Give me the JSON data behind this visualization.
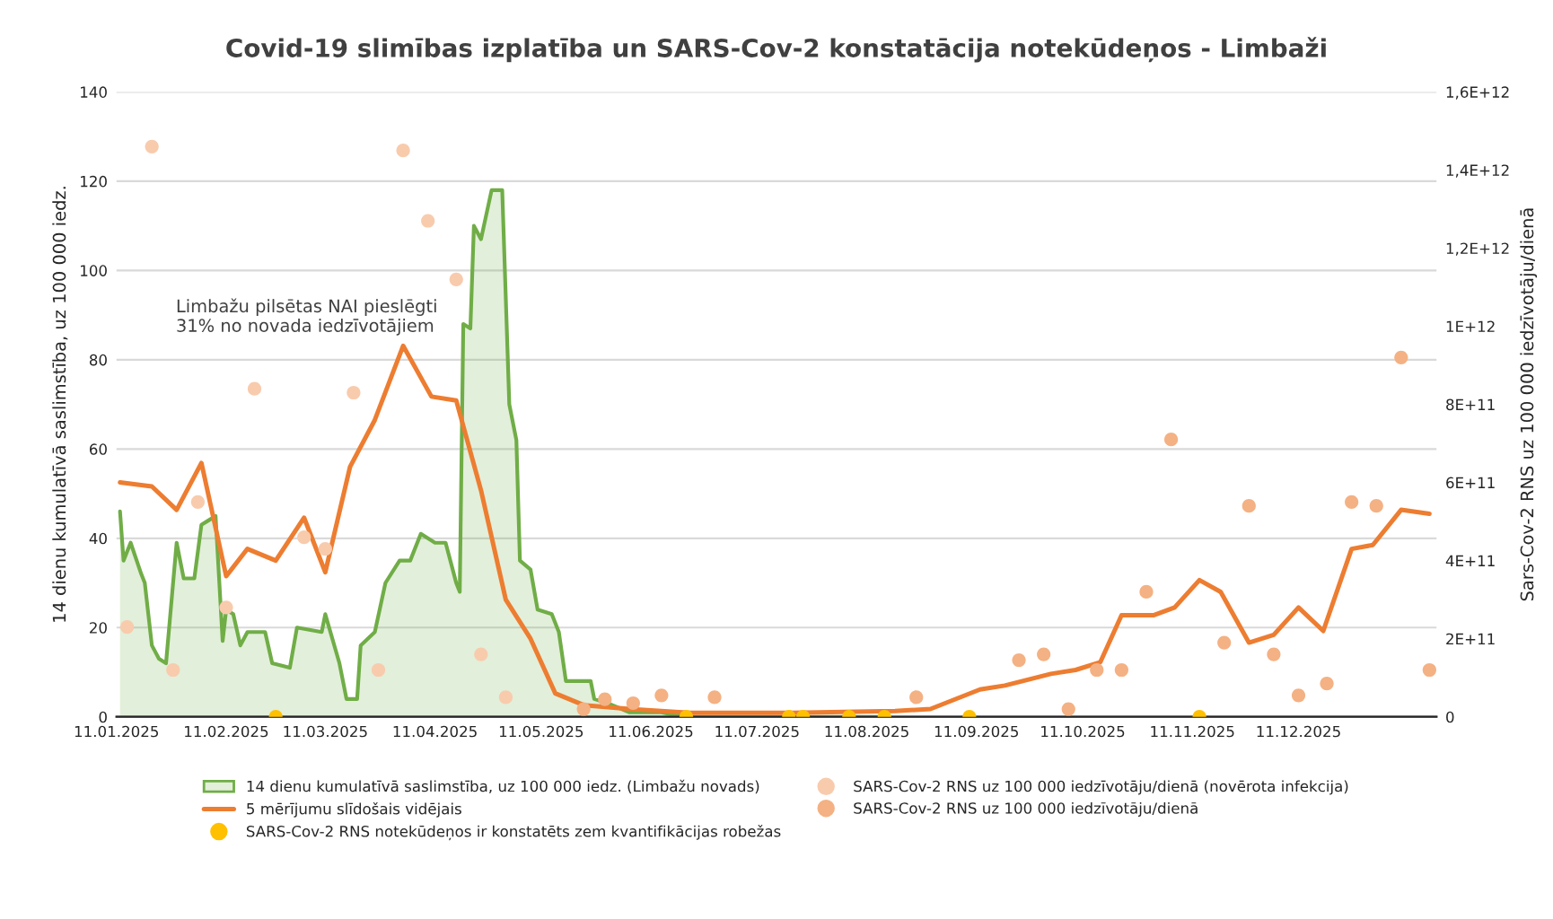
{
  "chart_data": {
    "type": "area",
    "title": "Covid-19 slimības izplatība un SARS-Cov-2 konstatācija notekūdeņos - Limbaži",
    "ylabel": "14 dienu kumulatīvā saslimstība, uz 100 000 iedz.",
    "y2label": "Sars-Cov-2 RNS uz 100 000 iedzīvotāju/dienā",
    "annotations": [
      "Limbažu pilsētas NAI pieslēgti\n31% no novada iedzīvotājiem"
    ],
    "xlim": [
      "2025-01-11",
      "2026-01-19"
    ],
    "xticks": [
      {
        "value": "2025-01-11",
        "label": "11.01.2025"
      },
      {
        "value": "2025-02-11",
        "label": "11.02.2025"
      },
      {
        "value": "2025-03-11",
        "label": "11.03.2025"
      },
      {
        "value": "2025-04-11",
        "label": "11.04.2025"
      },
      {
        "value": "2025-05-11",
        "label": "11.05.2025"
      },
      {
        "value": "2025-06-11",
        "label": "11.06.2025"
      },
      {
        "value": "2025-07-11",
        "label": "11.07.2025"
      },
      {
        "value": "2025-08-11",
        "label": "11.08.2025"
      },
      {
        "value": "2025-09-11",
        "label": "11.09.2025"
      },
      {
        "value": "2025-10-11",
        "label": "11.10.2025"
      },
      {
        "value": "2025-11-11",
        "label": "11.11.2025"
      },
      {
        "value": "2025-12-11",
        "label": "11.12.2025"
      }
    ],
    "ylim": [
      0,
      140
    ],
    "yticks": [
      0,
      20,
      40,
      60,
      80,
      100,
      120,
      140
    ],
    "y2lim": [
      0,
      1600000000000.0
    ],
    "y2ticks": [
      {
        "value": 0,
        "label": "0"
      },
      {
        "value": 200000000000.0,
        "label": "2E+11"
      },
      {
        "value": 400000000000.0,
        "label": "4E+11"
      },
      {
        "value": 600000000000.0,
        "label": "6E+11"
      },
      {
        "value": 800000000000.0,
        "label": "8E+11"
      },
      {
        "value": 1000000000000.0,
        "label": "1E+12"
      },
      {
        "value": 1200000000000.0,
        "label": "1,2E+12"
      },
      {
        "value": 1400000000000.0,
        "label": "1,4E+12"
      },
      {
        "value": 1600000000000.0,
        "label": "1,6E+12"
      }
    ],
    "grid": "y",
    "legend": "bottom",
    "series": [
      {
        "name": "14 dienu kumulatīvā saslimstība, uz 100 000 iedz. (Limbažu novads)",
        "color": "#70ad47",
        "x": [
          "2025-01-12",
          "2025-01-13",
          "2025-01-15",
          "2025-01-18",
          "2025-01-19",
          "2025-01-21",
          "2025-01-23",
          "2025-01-25",
          "2025-01-28",
          "2025-01-30",
          "2025-02-02",
          "2025-02-04",
          "2025-02-06",
          "2025-02-08",
          "2025-02-10",
          "2025-02-11",
          "2025-02-13",
          "2025-02-15",
          "2025-02-17",
          "2025-02-22",
          "2025-02-24",
          "2025-03-01",
          "2025-03-03",
          "2025-03-10",
          "2025-03-11",
          "2025-03-15",
          "2025-03-17",
          "2025-03-20",
          "2025-03-21",
          "2025-03-25",
          "2025-03-28",
          "2025-04-01",
          "2025-04-04",
          "2025-04-07",
          "2025-04-11",
          "2025-04-14",
          "2025-04-17",
          "2025-04-18",
          "2025-04-19",
          "2025-04-21",
          "2025-04-22",
          "2025-04-24",
          "2025-04-27",
          "2025-04-30",
          "2025-05-02",
          "2025-05-04",
          "2025-05-05",
          "2025-05-08",
          "2025-05-10",
          "2025-05-14",
          "2025-05-16",
          "2025-05-18",
          "2025-05-25",
          "2025-05-26",
          "2025-05-30",
          "2025-06-05",
          "2025-06-14",
          "2025-06-20",
          "2025-07-01",
          "2025-07-20",
          "2025-08-01",
          "2025-08-15"
        ],
        "values": [
          46,
          35,
          39,
          32,
          30,
          16,
          13,
          12,
          39,
          31,
          31,
          43,
          44,
          45,
          17,
          24,
          23,
          16,
          19,
          19,
          12,
          11,
          20,
          19,
          23,
          12,
          4,
          4,
          16,
          19,
          30,
          35,
          35,
          41,
          39,
          39,
          30,
          28,
          88,
          87,
          110,
          107,
          118,
          118,
          70,
          62,
          35,
          33,
          24,
          23,
          19,
          8,
          8,
          4,
          3,
          1,
          1,
          0,
          0,
          0,
          0,
          0
        ]
      },
      {
        "type": "line",
        "axis": "y2",
        "name": "5 mērījumu slīdošais vidējais",
        "color": "#ed7d31",
        "x": [
          "2025-01-12",
          "2025-01-21",
          "2025-01-28",
          "2025-02-04",
          "2025-02-11",
          "2025-02-17",
          "2025-02-25",
          "2025-03-05",
          "2025-03-11",
          "2025-03-18",
          "2025-03-25",
          "2025-04-02",
          "2025-04-10",
          "2025-04-17",
          "2025-04-24",
          "2025-05-01",
          "2025-05-08",
          "2025-05-15",
          "2025-05-23",
          "2025-06-05",
          "2025-06-22",
          "2025-07-01",
          "2025-07-21",
          "2025-08-19",
          "2025-08-29",
          "2025-09-12",
          "2025-09-19",
          "2025-10-02",
          "2025-10-09",
          "2025-10-16",
          "2025-10-22",
          "2025-10-31",
          "2025-11-06",
          "2025-11-13",
          "2025-11-19",
          "2025-11-27",
          "2025-12-04",
          "2025-12-11",
          "2025-12-18",
          "2025-12-26",
          "2026-01-01",
          "2026-01-09",
          "2026-01-17"
        ],
        "values": [
          600000000000.0,
          590000000000.0,
          530000000000.0,
          650000000000.0,
          360000000000.0,
          430000000000.0,
          400000000000.0,
          510000000000.0,
          370000000000.0,
          640000000000.0,
          760000000000.0,
          950000000000.0,
          820000000000.0,
          810000000000.0,
          580000000000.0,
          300000000000.0,
          200000000000.0,
          60000000000.0,
          30000000000.0,
          20000000000.0,
          10000000000.0,
          10000000000.0,
          10000000000.0,
          15000000000.0,
          20000000000.0,
          70000000000.0,
          80000000000.0,
          110000000000.0,
          120000000000.0,
          140000000000.0,
          260000000000.0,
          260000000000.0,
          280000000000.0,
          350000000000.0,
          320000000000.0,
          190000000000.0,
          210000000000.0,
          280000000000.0,
          220000000000.0,
          430000000000.0,
          440000000000.0,
          530000000000.0,
          520000000000.0
        ]
      },
      {
        "type": "scatter",
        "axis": "y2",
        "marker": "circle",
        "name": "SARS-Cov-2 RNS notekūdeņos ir konstatēts zem kvantifikācijas robežas",
        "color": "#ffc000",
        "x": [
          "2025-02-25",
          "2025-06-21",
          "2025-07-20",
          "2025-07-24",
          "2025-08-06",
          "2025-08-16",
          "2025-09-09",
          "2025-11-13"
        ],
        "values": [
          0,
          0,
          0,
          0,
          0,
          0,
          0,
          0
        ]
      },
      {
        "type": "scatter",
        "axis": "y2",
        "marker": "circle",
        "name": "SARS-Cov-2 RNS uz 100 000 iedzīvotāju/dienā (novērota infekcija)",
        "color": "#f8cbad",
        "x": [
          "2025-01-14",
          "2025-01-21",
          "2025-01-27",
          "2025-02-03",
          "2025-02-11",
          "2025-02-19",
          "2025-03-05",
          "2025-03-11",
          "2025-03-19",
          "2025-03-26",
          "2025-04-02",
          "2025-04-09",
          "2025-04-17",
          "2025-04-24",
          "2025-05-01"
        ],
        "values": [
          230000000000.0,
          1460000000000.0,
          120000000000.0,
          550000000000.0,
          280000000000.0,
          840000000000.0,
          460000000000.0,
          430000000000.0,
          830000000000.0,
          120000000000.0,
          1450000000000.0,
          1270000000000.0,
          1120000000000.0,
          160000000000.0,
          50000000000.0
        ]
      },
      {
        "type": "scatter",
        "axis": "y2",
        "marker": "circle",
        "name": "SARS-Cov-2 RNS uz 100 000 iedzīvotāju/dienā",
        "color": "#f4b183",
        "x": [
          "2025-05-23",
          "2025-05-29",
          "2025-06-06",
          "2025-06-14",
          "2025-06-29",
          "2025-08-25",
          "2025-09-23",
          "2025-09-30",
          "2025-10-07",
          "2025-10-15",
          "2025-10-22",
          "2025-10-29",
          "2025-11-05",
          "2025-11-20",
          "2025-11-27",
          "2025-12-04",
          "2025-12-11",
          "2025-12-19",
          "2025-12-26",
          "2026-01-02",
          "2026-01-09",
          "2026-01-17"
        ],
        "values": [
          20000000000.0,
          45000000000.0,
          35000000000.0,
          55000000000.0,
          50000000000.0,
          50000000000.0,
          145000000000.0,
          160000000000.0,
          20000000000.0,
          120000000000.0,
          120000000000.0,
          320000000000.0,
          710000000000.0,
          190000000000.0,
          540000000000.0,
          160000000000.0,
          55000000000.0,
          85000000000.0,
          550000000000.0,
          540000000000.0,
          920000000000.0,
          120000000000.0
        ]
      }
    ]
  }
}
